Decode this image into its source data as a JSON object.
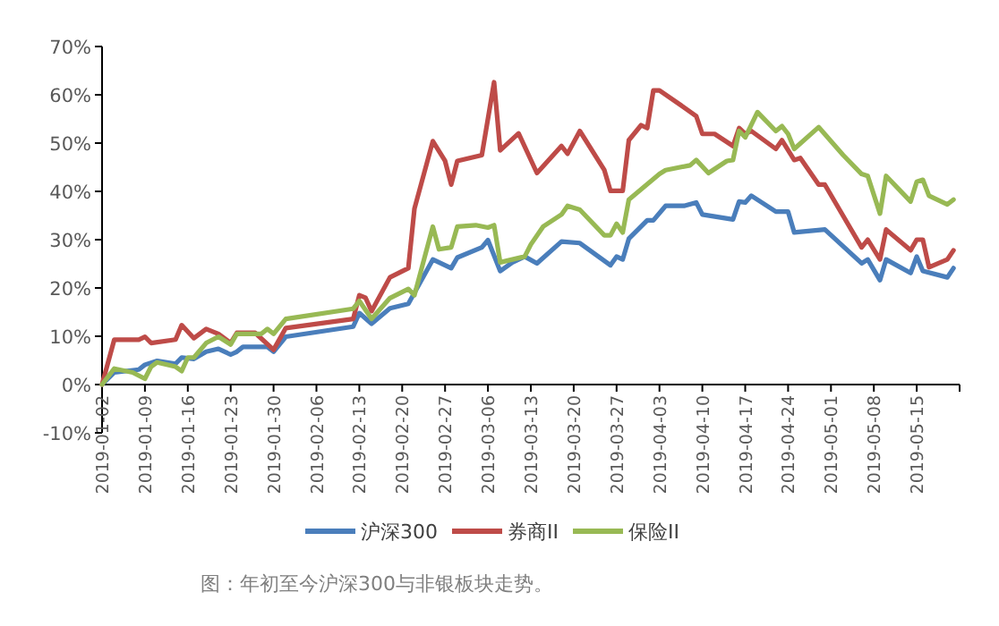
{
  "chart_data": {
    "type": "line",
    "xlim": [
      "2019-01-02",
      "2019-05-22"
    ],
    "ylim": [
      -10,
      70
    ],
    "xticks": [
      "2019-01-02",
      "2019-01-09",
      "2019-01-16",
      "2019-01-23",
      "2019-01-30",
      "2019-02-06",
      "2019-02-13",
      "2019-02-20",
      "2019-02-27",
      "2019-03-06",
      "2019-03-13",
      "2019-03-20",
      "2019-03-27",
      "2019-04-03",
      "2019-04-10",
      "2019-04-17",
      "2019-04-24",
      "2019-05-01",
      "2019-05-08",
      "2019-05-15",
      {
        "value": "2019-05-22",
        "label": null
      }
    ],
    "yticks": [
      {
        "value": -10,
        "label": "-10%"
      },
      {
        "value": 0,
        "label": "0%"
      },
      {
        "value": 10,
        "label": "10%"
      },
      {
        "value": 20,
        "label": "20%"
      },
      {
        "value": 30,
        "label": "30%"
      },
      {
        "value": 40,
        "label": "40%"
      },
      {
        "value": 50,
        "label": "50%"
      },
      {
        "value": 60,
        "label": "60%"
      },
      {
        "value": 70,
        "label": "70%"
      }
    ],
    "grid": false,
    "legend": "bottom",
    "marker": "none",
    "line_style": "solid",
    "annotations": [
      "图：年初至今沪深300与非银板块走势。"
    ],
    "series": [
      {
        "name": "沪深300",
        "color": "#4a7ebb",
        "x": [
          "2019-01-02",
          "2019-01-04",
          "2019-01-08",
          "2019-01-09",
          "2019-01-11",
          "2019-01-14",
          "2019-01-15",
          "2019-01-17",
          "2019-01-19",
          "2019-01-21",
          "2019-01-23",
          "2019-01-24",
          "2019-01-25",
          "2019-01-29",
          "2019-01-30",
          "2019-02-01",
          "2019-02-12",
          "2019-02-13",
          "2019-02-15",
          "2019-02-18",
          "2019-02-21",
          "2019-02-25",
          "2019-02-27",
          "2019-02-28",
          "2019-03-01",
          "2019-03-05",
          "2019-03-06",
          "2019-03-08",
          "2019-03-10",
          "2019-03-12",
          "2019-03-14",
          "2019-03-18",
          "2019-03-21",
          "2019-03-26",
          "2019-03-27",
          "2019-03-28",
          "2019-03-29",
          "2019-04-01",
          "2019-04-02",
          "2019-04-04",
          "2019-04-07",
          "2019-04-09",
          "2019-04-10",
          "2019-04-15",
          "2019-04-16",
          "2019-04-17",
          "2019-04-18",
          "2019-04-22",
          "2019-04-24",
          "2019-04-25",
          "2019-04-30",
          "2019-05-06",
          "2019-05-07",
          "2019-05-09",
          "2019-05-10",
          "2019-05-14",
          "2019-05-15",
          "2019-05-16",
          "2019-05-20",
          "2019-05-21"
        ],
        "values": [
          0,
          2.5,
          3.1,
          4.1,
          4.9,
          4.3,
          5.6,
          5.3,
          6.8,
          7.4,
          6.2,
          6.8,
          7.8,
          7.8,
          6.8,
          9.9,
          12.0,
          14.8,
          12.6,
          15.8,
          16.7,
          25.9,
          24.7,
          24.1,
          26.3,
          28.4,
          29.9,
          23.5,
          25.3,
          26.5,
          25.1,
          29.6,
          29.3,
          24.7,
          26.5,
          25.9,
          30.2,
          34.0,
          34.0,
          37.0,
          37.0,
          37.7,
          35.2,
          34.2,
          37.9,
          37.7,
          39.1,
          35.8,
          35.8,
          31.5,
          32.1,
          25.1,
          25.9,
          21.6,
          25.9,
          23.1,
          26.5,
          23.5,
          22.2,
          24.1
        ]
      },
      {
        "name": "券商II",
        "color": "#be4b48",
        "x": [
          "2019-01-02",
          "2019-01-04",
          "2019-01-08",
          "2019-01-09",
          "2019-01-10",
          "2019-01-14",
          "2019-01-15",
          "2019-01-17",
          "2019-01-19",
          "2019-01-21",
          "2019-01-23",
          "2019-01-24",
          "2019-01-27",
          "2019-01-30",
          "2019-02-01",
          "2019-02-12",
          "2019-02-13",
          "2019-02-14",
          "2019-02-15",
          "2019-02-18",
          "2019-02-21",
          "2019-02-22",
          "2019-02-25",
          "2019-02-27",
          "2019-02-28",
          "2019-03-01",
          "2019-03-05",
          "2019-03-07",
          "2019-03-08",
          "2019-03-11",
          "2019-03-14",
          "2019-03-18",
          "2019-03-19",
          "2019-03-21",
          "2019-03-25",
          "2019-03-26",
          "2019-03-28",
          "2019-03-29",
          "2019-03-31",
          "2019-04-01",
          "2019-04-02",
          "2019-04-03",
          "2019-04-07",
          "2019-04-09",
          "2019-04-10",
          "2019-04-12",
          "2019-04-15",
          "2019-04-16",
          "2019-04-17",
          "2019-04-18",
          "2019-04-22",
          "2019-04-23",
          "2019-04-25",
          "2019-04-26",
          "2019-04-29",
          "2019-04-30",
          "2019-05-06",
          "2019-05-07",
          "2019-05-09",
          "2019-05-10",
          "2019-05-14",
          "2019-05-15",
          "2019-05-16",
          "2019-05-17",
          "2019-05-20",
          "2019-05-21"
        ],
        "values": [
          0,
          9.3,
          9.3,
          9.9,
          8.6,
          9.3,
          12.3,
          9.6,
          11.5,
          10.5,
          8.6,
          10.7,
          10.7,
          7.2,
          11.7,
          13.6,
          18.5,
          18.0,
          15.2,
          22.2,
          24.1,
          36.4,
          50.4,
          46.3,
          41.4,
          46.3,
          47.5,
          62.6,
          48.5,
          52.0,
          43.8,
          49.4,
          47.8,
          52.5,
          44.4,
          40.1,
          40.1,
          50.6,
          53.7,
          53.1,
          60.9,
          60.9,
          57.4,
          55.6,
          51.9,
          51.9,
          49.4,
          53.1,
          51.9,
          52.5,
          48.8,
          50.6,
          46.5,
          46.9,
          41.4,
          41.4,
          28.4,
          30.0,
          25.9,
          32.1,
          27.8,
          30.0,
          30.0,
          24.3,
          25.9,
          27.8
        ]
      },
      {
        "name": "保险II",
        "color": "#98b954",
        "x": [
          "2019-01-02",
          "2019-01-04",
          "2019-01-07",
          "2019-01-09",
          "2019-01-10",
          "2019-01-11",
          "2019-01-14",
          "2019-01-15",
          "2019-01-16",
          "2019-01-17",
          "2019-01-19",
          "2019-01-21",
          "2019-01-23",
          "2019-01-24",
          "2019-01-28",
          "2019-01-29",
          "2019-01-30",
          "2019-02-01",
          "2019-02-12",
          "2019-02-13",
          "2019-02-15",
          "2019-02-18",
          "2019-02-21",
          "2019-02-22",
          "2019-02-25",
          "2019-02-26",
          "2019-02-28",
          "2019-03-01",
          "2019-03-04",
          "2019-03-06",
          "2019-03-07",
          "2019-03-08",
          "2019-03-12",
          "2019-03-13",
          "2019-03-15",
          "2019-03-18",
          "2019-03-19",
          "2019-03-21",
          "2019-03-25",
          "2019-03-26",
          "2019-03-27",
          "2019-03-28",
          "2019-03-29",
          "2019-04-03",
          "2019-04-04",
          "2019-04-08",
          "2019-04-09",
          "2019-04-11",
          "2019-04-14",
          "2019-04-15",
          "2019-04-16",
          "2019-04-17",
          "2019-04-19",
          "2019-04-22",
          "2019-04-23",
          "2019-04-24",
          "2019-04-25",
          "2019-04-29",
          "2019-05-03",
          "2019-05-06",
          "2019-05-07",
          "2019-05-09",
          "2019-05-10",
          "2019-05-14",
          "2019-05-15",
          "2019-05-16",
          "2019-05-17",
          "2019-05-20",
          "2019-05-21"
        ],
        "values": [
          0,
          3.3,
          2.5,
          1.2,
          3.7,
          4.6,
          3.7,
          2.8,
          5.6,
          5.6,
          8.6,
          9.9,
          8.3,
          10.5,
          10.5,
          11.5,
          10.5,
          13.6,
          15.7,
          17.3,
          13.6,
          17.9,
          19.8,
          18.5,
          32.7,
          28.0,
          28.4,
          32.7,
          33.0,
          32.5,
          33.0,
          25.3,
          26.5,
          29.0,
          32.7,
          35.2,
          37.0,
          36.2,
          30.9,
          30.9,
          33.3,
          31.5,
          38.3,
          43.6,
          44.4,
          45.4,
          46.5,
          43.8,
          46.3,
          46.5,
          52.5,
          51.2,
          56.4,
          52.5,
          53.5,
          51.9,
          48.8,
          53.3,
          47.5,
          43.6,
          43.2,
          35.4,
          43.2,
          37.9,
          42.0,
          42.4,
          39.1,
          37.3,
          38.3
        ]
      }
    ]
  }
}
